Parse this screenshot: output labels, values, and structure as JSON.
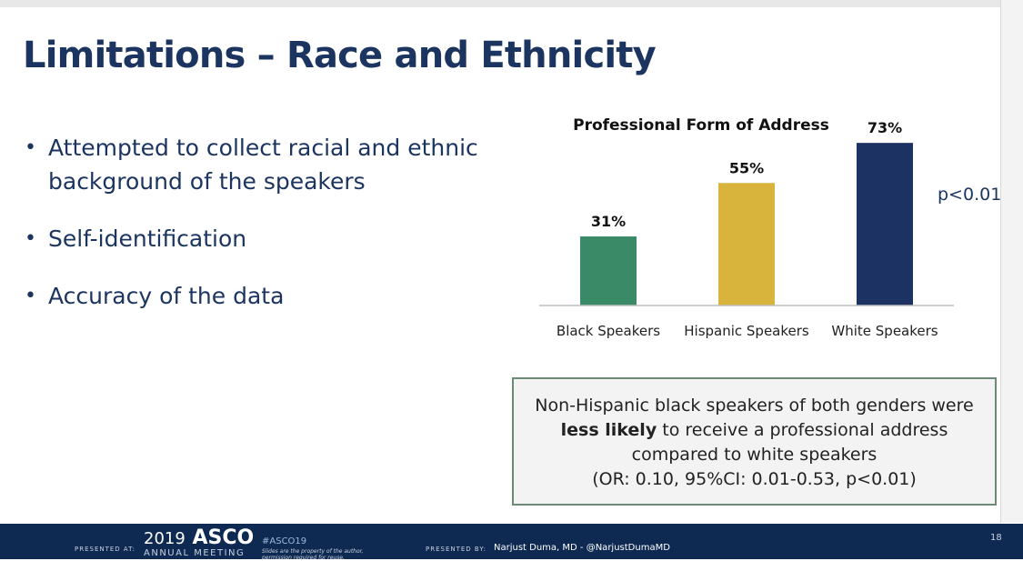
{
  "slide": {
    "title": "Limitations – Race and Ethnicity",
    "bullets": [
      "Attempted to collect racial and ethnic background of the speakers",
      "Self-identification",
      "Accuracy of the data"
    ],
    "bullet_symbol": "•",
    "p_value_text": "p<0.01",
    "callout": {
      "part1": "Non-Hispanic black speakers of both genders were",
      "bold": "less likely",
      "part2": "to receive a professional address compared to white speakers",
      "part3": "(OR: 0.10, 95%CI: 0.01-0.53, p<0.01)"
    },
    "footer": {
      "presented_at": "PRESENTED AT:",
      "year": "2019",
      "brand": "ASCO",
      "annual_meeting": "ANNUAL MEETING",
      "hashtag": "#ASCO19",
      "disclaimer": "Slides are the property of the author, permission required for reuse.",
      "presented_by": "PRESENTED BY:",
      "presenter": "Narjust Duma, MD - @NarjustDumaMD",
      "page_number": "18"
    }
  },
  "colors": {
    "title": "#1c3560",
    "footer_bg": "#0f2a52",
    "callout_border": "#6b8b76"
  },
  "chart_data": {
    "type": "bar",
    "title": "Professional Form of Address",
    "categories": [
      "Black Speakers",
      "Hispanic Speakers",
      "White Speakers"
    ],
    "values": [
      31,
      55,
      73
    ],
    "value_labels": [
      "31%",
      "55%",
      "73%"
    ],
    "colors": [
      "#3a8a68",
      "#d9b43c",
      "#1c3262"
    ],
    "ylim": [
      0,
      80
    ],
    "xlabel": "",
    "ylabel": "",
    "grid": false
  }
}
